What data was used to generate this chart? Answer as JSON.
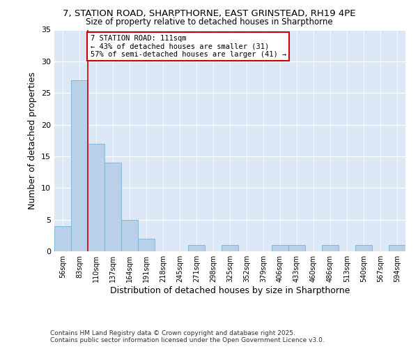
{
  "title_line1": "7, STATION ROAD, SHARPTHORNE, EAST GRINSTEAD, RH19 4PE",
  "title_line2": "Size of property relative to detached houses in Sharpthorne",
  "xlabel": "Distribution of detached houses by size in Sharpthorne",
  "ylabel": "Number of detached properties",
  "bins": [
    "56sqm",
    "83sqm",
    "110sqm",
    "137sqm",
    "164sqm",
    "191sqm",
    "218sqm",
    "245sqm",
    "271sqm",
    "298sqm",
    "325sqm",
    "352sqm",
    "379sqm",
    "406sqm",
    "433sqm",
    "460sqm",
    "486sqm",
    "513sqm",
    "540sqm",
    "567sqm",
    "594sqm"
  ],
  "values": [
    4,
    27,
    17,
    14,
    5,
    2,
    0,
    0,
    1,
    0,
    1,
    0,
    0,
    1,
    1,
    0,
    1,
    0,
    1,
    0,
    1
  ],
  "bar_color": "#b8d0e8",
  "bar_edge_color": "#7aafd4",
  "vline_x_index": 2,
  "vline_color": "#cc0000",
  "annotation_title": "7 STATION ROAD: 111sqm",
  "annotation_line1": "← 43% of detached houses are smaller (31)",
  "annotation_line2": "57% of semi-detached houses are larger (41) →",
  "annotation_box_color": "#ffffff",
  "annotation_box_edgecolor": "#cc0000",
  "ylim": [
    0,
    35
  ],
  "yticks": [
    0,
    5,
    10,
    15,
    20,
    25,
    30,
    35
  ],
  "plot_bg_color": "#dce8f5",
  "fig_bg_color": "#ffffff",
  "footer_line1": "Contains HM Land Registry data © Crown copyright and database right 2025.",
  "footer_line2": "Contains public sector information licensed under the Open Government Licence v3.0.",
  "title_fontsize": 9.5,
  "subtitle_fontsize": 8.5,
  "axis_label_fontsize": 9,
  "tick_fontsize": 7,
  "annotation_fontsize": 7.5,
  "footer_fontsize": 6.5
}
